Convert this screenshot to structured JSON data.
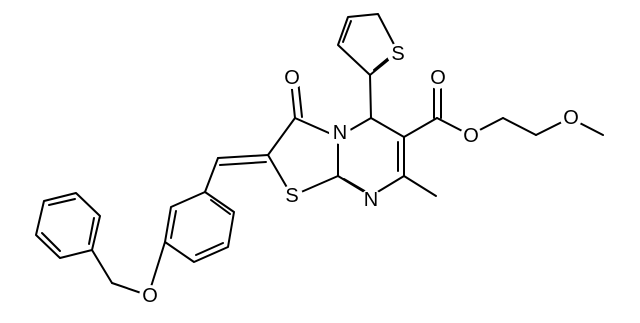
{
  "atoms": [
    {
      "label": "S"
    },
    {
      "label": "O"
    },
    {
      "label": "N"
    },
    {
      "label": "O"
    },
    {
      "label": "O"
    },
    {
      "label": "O"
    },
    {
      "label": "S"
    },
    {
      "label": "N"
    },
    {
      "label": "O"
    }
  ]
}
